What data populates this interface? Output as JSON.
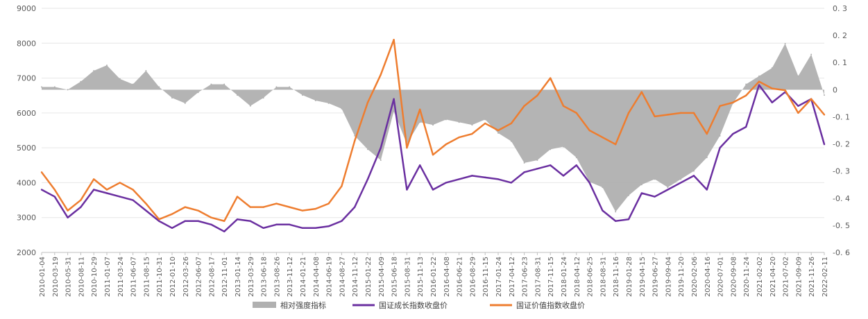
{
  "chart_data": {
    "type": "line",
    "title": "",
    "xlabel": "",
    "ylabel": "",
    "ylim_left": [
      2000,
      9000
    ],
    "yticks_left": [
      "2000",
      "3000",
      "4000",
      "5000",
      "6000",
      "7000",
      "8000",
      "9000"
    ],
    "ylim_right": [
      -0.6,
      0.3
    ],
    "yticks_right": [
      "-0. 6",
      "-0. 5",
      "-0. 4",
      "-0. 3",
      "-0. 2",
      "-0. 1",
      "0",
      "0. 1",
      "0. 2",
      "0. 3"
    ],
    "grid": "horizontal",
    "legend_position": "bottom",
    "colors": {
      "strength": "#b0b0b0",
      "growth": "#6a2fa0",
      "value": "#ee7d2f"
    },
    "x_tick_labels": [
      "2010-01-04",
      "2010-03-19",
      "2010-05-31",
      "2010-08-11",
      "2010-10-29",
      "2011-01-07",
      "2011-03-24",
      "2011-06-07",
      "2011-08-15",
      "2011-10-31",
      "2012-01-10",
      "2012-03-26",
      "2012-06-07",
      "2012-08-17",
      "2012-11-01",
      "2013-01-14",
      "2013-03-29",
      "2013-06-18",
      "2013-08-26",
      "2013-11-12",
      "2014-01-21",
      "2014-04-08",
      "2014-06-19",
      "2014-08-27",
      "2014-11-12",
      "2015-01-22",
      "2015-04-09",
      "2015-06-18",
      "2015-08-31",
      "2015-11-13",
      "2016-01-22",
      "2016-04-08",
      "2016-06-21",
      "2016-08-29",
      "2016-11-15",
      "2017-01-24",
      "2017-04-12",
      "2017-06-23",
      "2017-08-31",
      "2017-11-15",
      "2018-01-24",
      "2018-04-12",
      "2018-06-25",
      "2018-08-31",
      "2018-11-16",
      "2019-01-28",
      "2019-04-15",
      "2019-06-27",
      "2019-09-04",
      "2019-11-20",
      "2020-02-06",
      "2020-04-16",
      "2020-07-01",
      "2020-09-08",
      "2020-11-24",
      "2021-02-02",
      "2021-04-20",
      "2021-07-02",
      "2021-09-09",
      "2021-11-26",
      "2022-02-11"
    ],
    "series": [
      {
        "name": "相对强度指标",
        "type": "area",
        "axis": "right",
        "values": [
          0.01,
          0.01,
          0.0,
          0.03,
          0.07,
          0.09,
          0.04,
          0.02,
          0.07,
          0.01,
          -0.03,
          -0.05,
          -0.01,
          0.02,
          0.02,
          -0.02,
          -0.06,
          -0.03,
          0.01,
          0.01,
          -0.02,
          -0.04,
          -0.05,
          -0.07,
          -0.17,
          -0.22,
          -0.26,
          -0.08,
          -0.2,
          -0.12,
          -0.13,
          -0.11,
          -0.12,
          -0.13,
          -0.11,
          -0.16,
          -0.19,
          -0.27,
          -0.26,
          -0.22,
          -0.21,
          -0.25,
          -0.34,
          -0.36,
          -0.45,
          -0.39,
          -0.35,
          -0.33,
          -0.36,
          -0.33,
          -0.3,
          -0.25,
          -0.17,
          -0.05,
          0.02,
          0.05,
          0.08,
          0.17,
          0.05,
          0.13,
          -0.02
        ]
      },
      {
        "name": "国证成长指数收盘价",
        "type": "line",
        "axis": "left",
        "values": [
          3800,
          3600,
          3000,
          3300,
          3800,
          3700,
          3600,
          3500,
          3200,
          2900,
          2700,
          2900,
          2900,
          2800,
          2600,
          2950,
          2900,
          2700,
          2800,
          2800,
          2700,
          2700,
          2750,
          2900,
          3300,
          4100,
          5000,
          6400,
          3800,
          4500,
          3800,
          4000,
          4100,
          4200,
          4150,
          4100,
          4000,
          4300,
          4400,
          4500,
          4200,
          4500,
          4000,
          3200,
          2900,
          2950,
          3700,
          3600,
          3800,
          4000,
          4200,
          3800,
          5000,
          5400,
          5600,
          6800,
          6300,
          6600,
          6200,
          6400,
          5100
        ]
      },
      {
        "name": "国证价值指数收盘价",
        "type": "line",
        "axis": "left",
        "values": [
          4300,
          3800,
          3200,
          3500,
          4100,
          3800,
          4000,
          3800,
          3400,
          2950,
          3100,
          3300,
          3200,
          3000,
          2900,
          3600,
          3300,
          3300,
          3400,
          3300,
          3200,
          3250,
          3400,
          3900,
          5200,
          6300,
          7100,
          8100,
          5000,
          6100,
          4800,
          5100,
          5300,
          5400,
          5700,
          5500,
          5700,
          6200,
          6500,
          7000,
          6200,
          6000,
          5500,
          5300,
          5100,
          6000,
          6600,
          5900,
          5950,
          6000,
          6000,
          5400,
          6200,
          6300,
          6500,
          6900,
          6700,
          6650,
          6000,
          6400,
          5950
        ]
      }
    ]
  }
}
